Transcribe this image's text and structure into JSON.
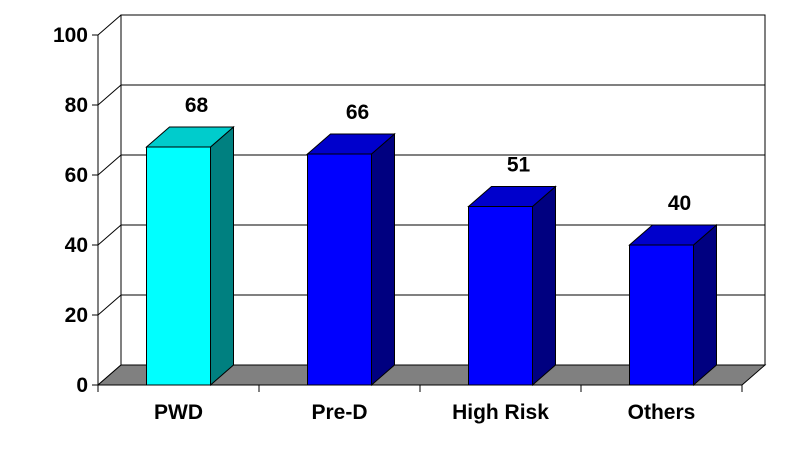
{
  "chart_data": {
    "type": "bar",
    "title": "",
    "xlabel": "",
    "ylabel": "",
    "categories": [
      "PWD",
      "Pre-D",
      "High Risk",
      "Others"
    ],
    "values": [
      68,
      66,
      51,
      40
    ],
    "data_labels": [
      "68",
      "66",
      "51",
      "40"
    ],
    "ylim": [
      0,
      100
    ],
    "yticks": [
      0,
      20,
      40,
      60,
      80,
      100
    ],
    "grid": true,
    "legend": "none",
    "style": "3d-bar",
    "bar_colors": [
      {
        "front": "#00ffff",
        "side": "#008080",
        "top": "#00cccc"
      },
      {
        "front": "#0000ff",
        "side": "#000080",
        "top": "#0000cc"
      },
      {
        "front": "#0000ff",
        "side": "#000080",
        "top": "#0000cc"
      },
      {
        "front": "#0000ff",
        "side": "#000080",
        "top": "#0000cc"
      }
    ],
    "floor_color": "#808080",
    "gridline_color": "#000000"
  }
}
